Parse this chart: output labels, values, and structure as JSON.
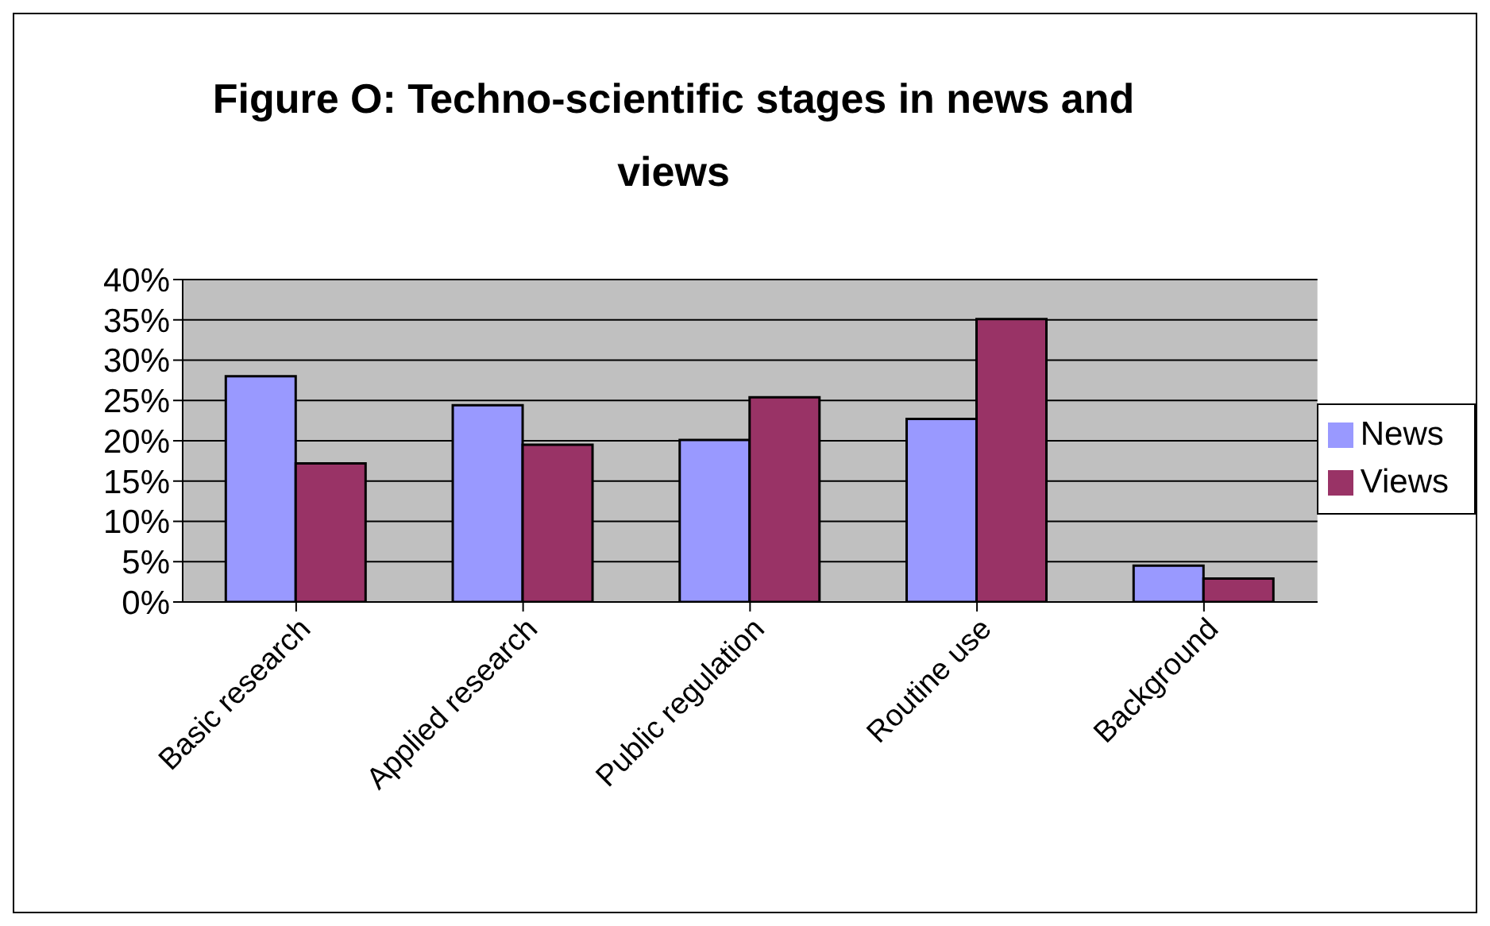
{
  "chart_data": {
    "type": "bar",
    "title": "Figure O: Techno-scientific stages in news and views",
    "categories": [
      "Basic research",
      "Applied research",
      "Public regulation",
      "Routine use",
      "Background"
    ],
    "series": [
      {
        "name": "News",
        "color": "#9999ff",
        "values": [
          28.0,
          24.4,
          20.1,
          22.7,
          4.5
        ]
      },
      {
        "name": "Views",
        "color": "#993366",
        "values": [
          17.2,
          19.5,
          25.4,
          35.1,
          2.9
        ]
      }
    ],
    "ylim": [
      0,
      40
    ],
    "yticks": [
      {
        "value": 0,
        "label": "0%"
      },
      {
        "value": 5,
        "label": "5%"
      },
      {
        "value": 10,
        "label": "10%"
      },
      {
        "value": 15,
        "label": "15%"
      },
      {
        "value": 20,
        "label": "20%"
      },
      {
        "value": 25,
        "label": "25%"
      },
      {
        "value": 30,
        "label": "30%"
      },
      {
        "value": 35,
        "label": "35%"
      },
      {
        "value": 40,
        "label": "40%"
      }
    ],
    "grid": "y",
    "legend": "right"
  }
}
